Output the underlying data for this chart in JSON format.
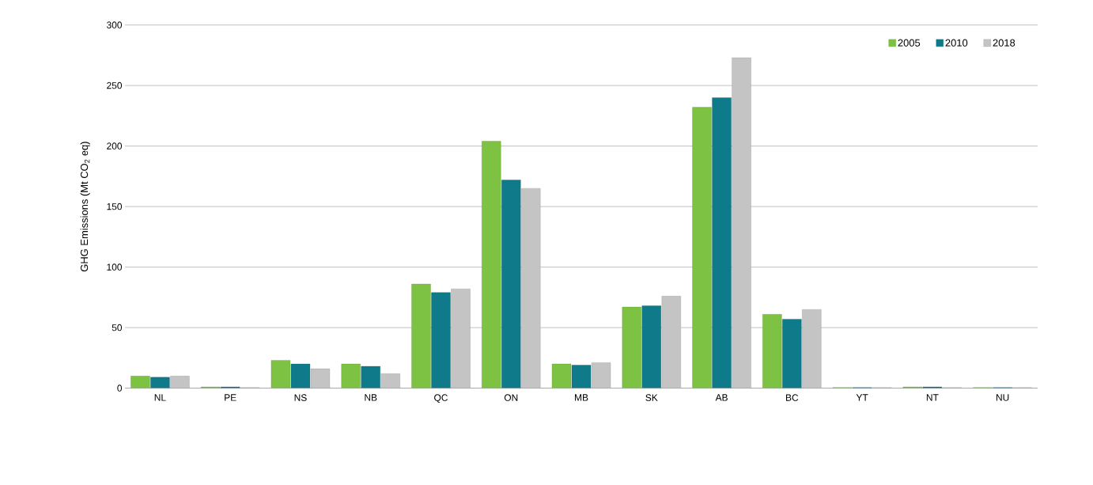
{
  "chart_data": {
    "type": "bar",
    "ylabel": "GHG Emissions (Mt CO$_{2}$ eq)",
    "categories": [
      "NL",
      "PE",
      "NS",
      "NB",
      "QC",
      "ON",
      "MB",
      "SK",
      "AB",
      "BC",
      "YT",
      "NT",
      "NU"
    ],
    "series": [
      {
        "name": "2005",
        "color": "#7dc242",
        "values": [
          10,
          1,
          23,
          20,
          86,
          204,
          20,
          67,
          232,
          61,
          0.5,
          1,
          0.5
        ]
      },
      {
        "name": "2010",
        "color": "#0e7a8a",
        "values": [
          9,
          1,
          20,
          18,
          79,
          172,
          19,
          68,
          240,
          57,
          0.5,
          1,
          0.5
        ]
      },
      {
        "name": "2018",
        "color": "#c4c4c4",
        "values": [
          10,
          0.5,
          16,
          12,
          82,
          165,
          21,
          76,
          273,
          65,
          0.5,
          0.5,
          0.5
        ]
      }
    ],
    "ylim": [
      0,
      300
    ],
    "yticks": [
      0,
      50,
      100,
      150,
      200,
      250,
      300
    ],
    "grid": "y",
    "legend": "top right"
  }
}
